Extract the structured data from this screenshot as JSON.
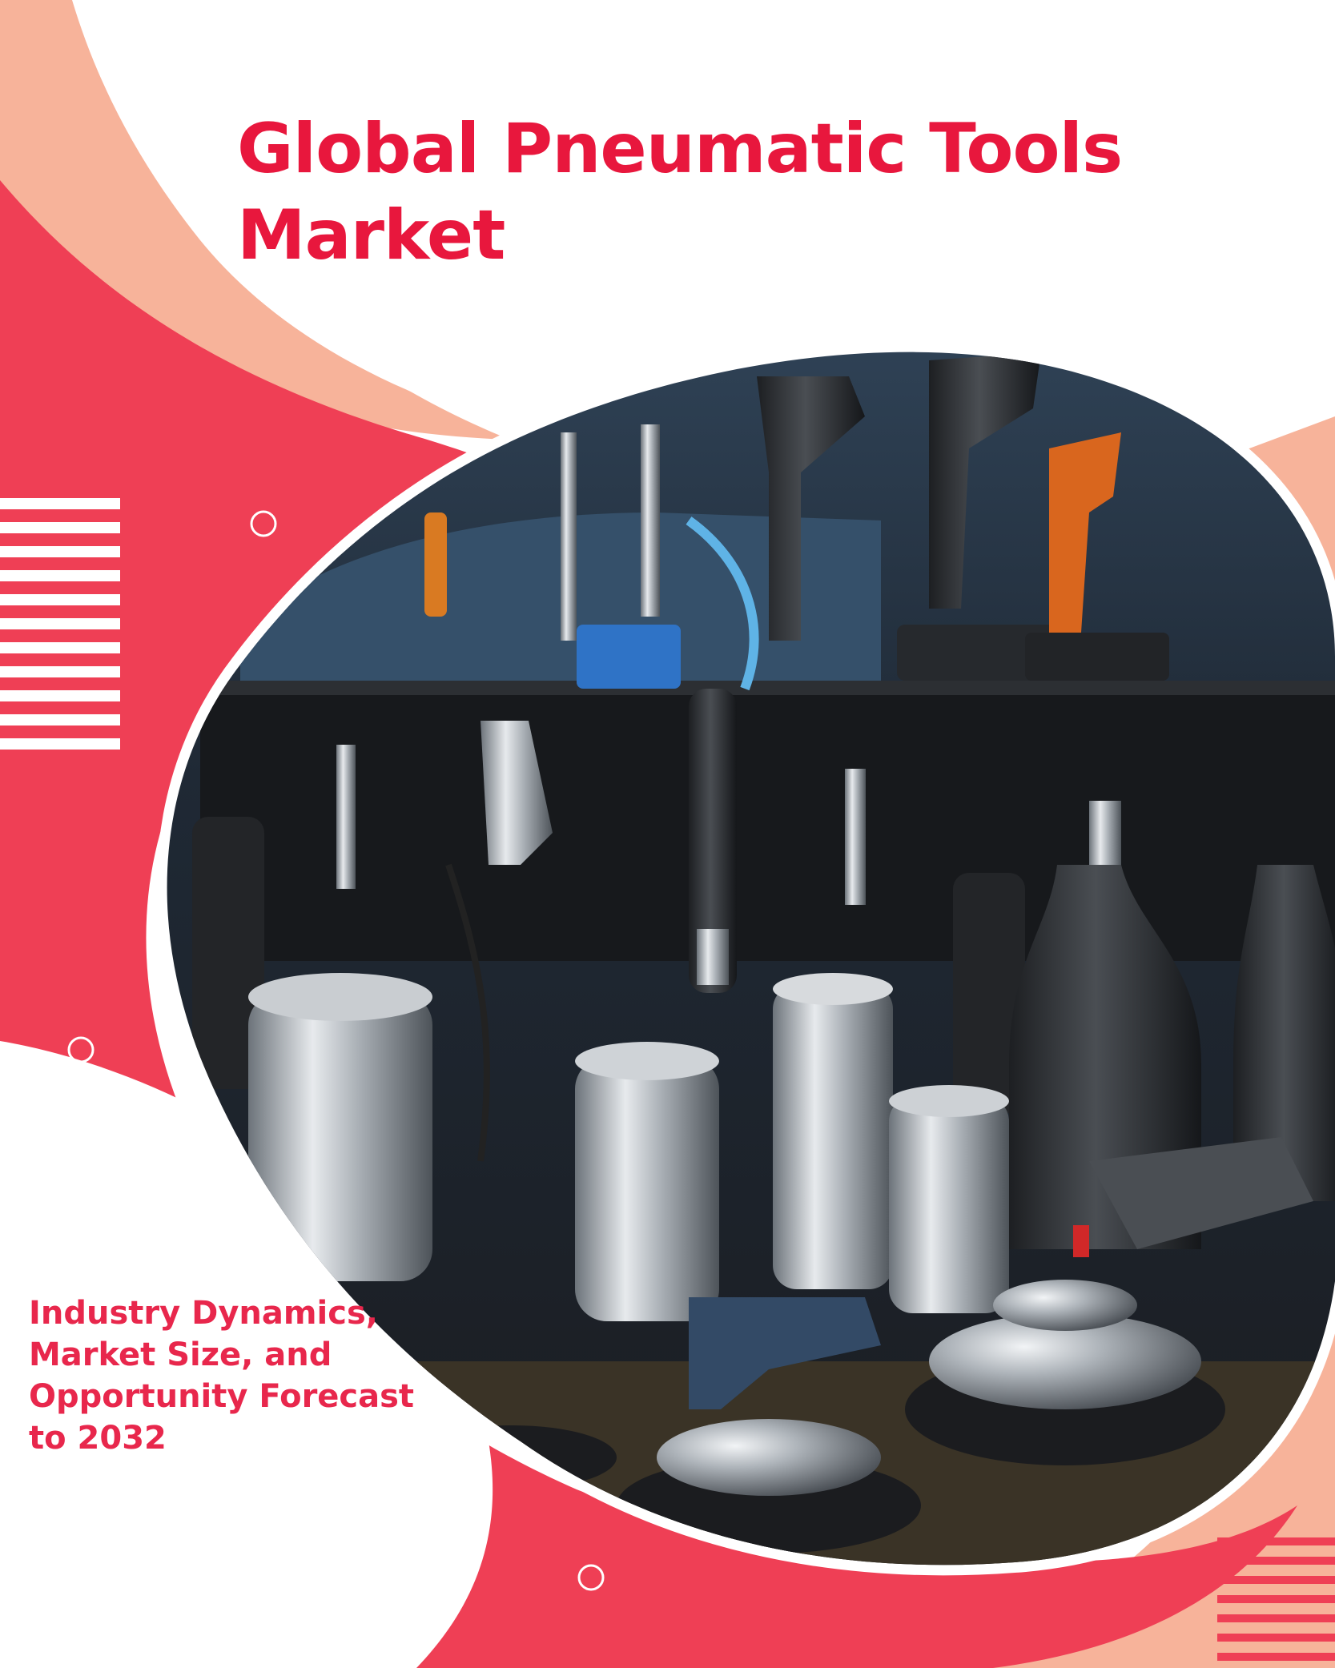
{
  "cover": {
    "title_line1": "Global Pneumatic Tools",
    "title_line2": "Market",
    "subtitle_lines": [
      "Industry Dynamics,",
      "Market Size, and",
      "Opportunity Forecast",
      "to 2032"
    ]
  },
  "colors": {
    "brand_red": "#e8173d",
    "coral": "#ef3f55",
    "peach": "#f7b39a",
    "white": "#ffffff"
  },
  "image": {
    "subject": "pneumatic tools arrangement"
  }
}
